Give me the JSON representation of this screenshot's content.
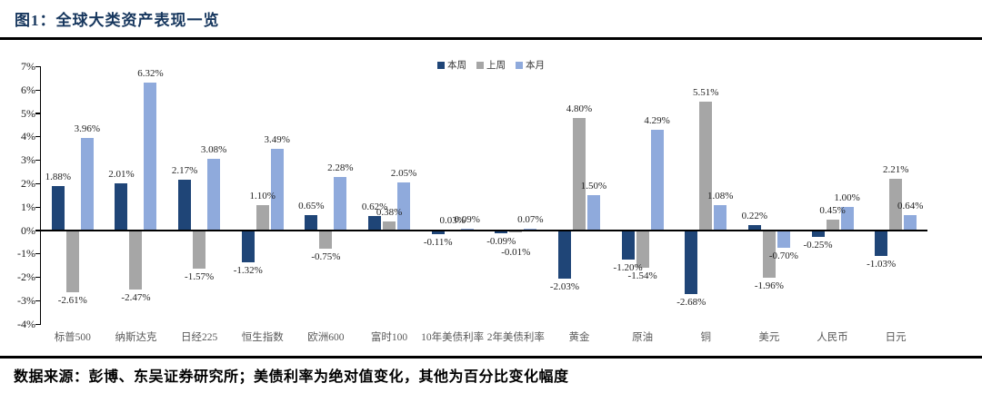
{
  "header": {
    "title": "图1：全球大类资产表现一览"
  },
  "legend": [
    {
      "label": "本周",
      "color": "#1F4577"
    },
    {
      "label": "上周",
      "color": "#A6A6A6"
    },
    {
      "label": "本月",
      "color": "#8FAADC"
    }
  ],
  "footer": {
    "text": "数据来源：彭博、东吴证券研究所；美债利率为绝对值变化，其他为百分比变化幅度"
  },
  "chart_data": {
    "type": "bar",
    "title": "全球大类资产表现一览",
    "categories": [
      "标普500",
      "纳斯达克",
      "日经225",
      "恒生指数",
      "欧洲600",
      "富时100",
      "10年美债利率",
      "2年美债利率",
      "黄金",
      "原油",
      "铜",
      "美元",
      "人民币",
      "日元"
    ],
    "series": [
      {
        "name": "本周",
        "color": "#1F4577",
        "values": [
          1.88,
          2.01,
          2.17,
          -1.32,
          0.65,
          0.62,
          -0.11,
          -0.09,
          -2.03,
          -1.2,
          -2.68,
          0.22,
          -0.25,
          -1.03
        ]
      },
      {
        "name": "上周",
        "color": "#A6A6A6",
        "values": [
          -2.61,
          -2.47,
          -1.57,
          1.1,
          -0.75,
          0.38,
          0.03,
          -0.01,
          4.8,
          -1.54,
          5.51,
          -1.96,
          0.45,
          2.21
        ]
      },
      {
        "name": "本月",
        "color": "#8FAADC",
        "values": [
          3.96,
          6.32,
          3.08,
          3.49,
          2.28,
          2.05,
          0.09,
          0.07,
          1.5,
          4.29,
          1.08,
          -0.7,
          1.0,
          0.64
        ]
      }
    ],
    "xlabel": "",
    "ylabel": "",
    "ylim": [
      -4,
      7
    ],
    "y_tick_step": 1,
    "y_tick_suffix": "%",
    "value_label_decimals": 2,
    "value_label_suffix": "%",
    "grid": false,
    "legend_position": "top-center",
    "label_offsets": [
      {
        "series": 1,
        "category": 7,
        "dy": 13
      }
    ]
  }
}
